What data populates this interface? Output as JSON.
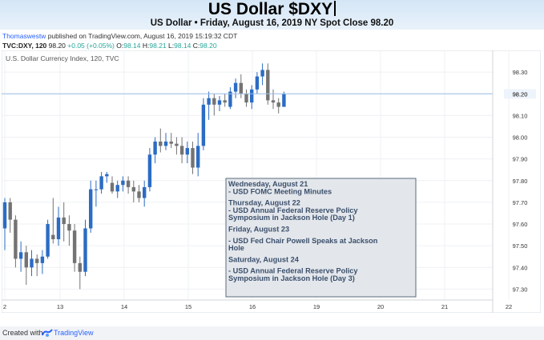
{
  "header": {
    "title": "US Dollar $DXY",
    "subtitle": "US Dollar • Friday, August 16, 2019 NY Spot Close 98.20"
  },
  "publish": {
    "author": "Thomaswestw",
    "text": " published on TradingView.com, August 16, 2019 15:19:32 CDT"
  },
  "ticker": {
    "symbol": "TVC:DXY, 120",
    "last": " 98.20 ",
    "change": "+0.05 (+0.05%)",
    "o_label": " O:",
    "o": "98.14",
    "h_label": " H:",
    "h": "98.21",
    "l_label": " L:",
    "l": "98.14",
    "c_label": " C:",
    "c": "98.20"
  },
  "footer": {
    "created_with": "Created with",
    "brand": "TradingView"
  },
  "colors": {
    "up": "#2b6cc4",
    "down": "#737373",
    "grid": "#eef0f3",
    "price_line": "#9bbde8",
    "header_bg": "#d4e6f6",
    "box_bg": "#e3e7ec"
  },
  "chart_data": {
    "type": "candlestick",
    "label": "U.S. Dollar Currency Index, 120, TVC",
    "last_price": 98.2,
    "ylim": [
      97.25,
      98.4
    ],
    "y_ticks": [
      "97.30",
      "97.40",
      "97.50",
      "97.60",
      "97.70",
      "97.80",
      "97.90",
      "98.00",
      "98.10",
      "98.20",
      "98.30"
    ],
    "x_ticks": [
      "2",
      "13",
      "14",
      "15",
      "16",
      "19",
      "20",
      "21",
      "22"
    ],
    "grid": true,
    "candles": [
      [
        97.58,
        97.72,
        97.48,
        97.7
      ],
      [
        97.7,
        97.72,
        97.56,
        97.62
      ],
      [
        97.62,
        97.64,
        97.4,
        97.44
      ],
      [
        97.44,
        97.52,
        97.38,
        97.47
      ],
      [
        97.47,
        97.5,
        97.32,
        97.4
      ],
      [
        97.4,
        97.48,
        97.36,
        97.44
      ],
      [
        97.44,
        97.46,
        97.36,
        97.42
      ],
      [
        97.42,
        97.48,
        97.37,
        97.45
      ],
      [
        97.45,
        97.62,
        97.44,
        97.6
      ],
      [
        97.55,
        97.72,
        97.51,
        97.53
      ],
      [
        97.53,
        97.68,
        97.5,
        97.63
      ],
      [
        97.63,
        97.7,
        97.52,
        97.6
      ],
      [
        97.6,
        97.64,
        97.5,
        97.57
      ],
      [
        97.57,
        97.6,
        97.38,
        97.42
      ],
      [
        97.42,
        97.45,
        97.3,
        97.38
      ],
      [
        97.38,
        97.62,
        97.36,
        97.58
      ],
      [
        97.58,
        97.8,
        97.56,
        97.76
      ],
      [
        97.76,
        97.8,
        97.68,
        97.76
      ],
      [
        97.76,
        97.84,
        97.74,
        97.82
      ],
      [
        97.82,
        97.84,
        97.79,
        97.83
      ],
      [
        97.79,
        97.82,
        97.74,
        97.75
      ],
      [
        97.75,
        97.8,
        97.72,
        97.78
      ],
      [
        97.78,
        97.82,
        97.75,
        97.8
      ],
      [
        97.8,
        97.82,
        97.74,
        97.77
      ],
      [
        97.77,
        97.8,
        97.7,
        97.75
      ],
      [
        97.75,
        97.78,
        97.7,
        97.72
      ],
      [
        97.72,
        97.8,
        97.68,
        97.77
      ],
      [
        97.77,
        97.95,
        97.75,
        97.92
      ],
      [
        97.92,
        98.0,
        97.88,
        97.98
      ],
      [
        97.98,
        98.04,
        97.93,
        97.96
      ],
      [
        97.96,
        98.02,
        97.94,
        97.98
      ],
      [
        97.98,
        98.02,
        97.95,
        97.97
      ],
      [
        97.97,
        98.0,
        97.92,
        97.96
      ],
      [
        97.96,
        98.0,
        97.88,
        97.92
      ],
      [
        97.92,
        97.98,
        97.88,
        97.95
      ],
      [
        97.95,
        97.98,
        97.83,
        97.86
      ],
      [
        97.86,
        98.02,
        97.82,
        97.96
      ],
      [
        97.96,
        98.18,
        97.94,
        98.15
      ],
      [
        98.15,
        98.21,
        98.08,
        98.18
      ],
      [
        98.18,
        98.2,
        98.1,
        98.15
      ],
      [
        98.15,
        98.19,
        98.12,
        98.17
      ],
      [
        98.17,
        98.2,
        98.14,
        98.16
      ],
      [
        98.14,
        98.23,
        98.13,
        98.21
      ],
      [
        98.21,
        98.27,
        98.18,
        98.25
      ],
      [
        98.25,
        98.29,
        98.18,
        98.2
      ],
      [
        98.2,
        98.22,
        98.14,
        98.16
      ],
      [
        98.16,
        98.24,
        98.13,
        98.22
      ],
      [
        98.22,
        98.3,
        98.2,
        98.28
      ],
      [
        98.28,
        98.34,
        98.24,
        98.31
      ],
      [
        98.31,
        98.34,
        98.15,
        98.17
      ],
      [
        98.17,
        98.22,
        98.13,
        98.16
      ],
      [
        98.16,
        98.18,
        98.11,
        98.14
      ],
      [
        98.14,
        98.21,
        98.14,
        98.2
      ]
    ],
    "events": [
      {
        "kind": "day",
        "text": "Wednesday, August 21"
      },
      {
        "kind": "item",
        "text": "- USD FOMC Meeting Minutes"
      },
      {
        "kind": "gap",
        "text": ""
      },
      {
        "kind": "day",
        "text": "Thursday, August 22"
      },
      {
        "kind": "item",
        "text": "- USD Annual Federal Reserve Policy"
      },
      {
        "kind": "item",
        "text": "Symposium in Jackson Hole (Day 1)"
      },
      {
        "kind": "gap",
        "text": ""
      },
      {
        "kind": "day",
        "text": "Friday, August 23"
      },
      {
        "kind": "gap",
        "text": ""
      },
      {
        "kind": "item",
        "text": "- USD Fed Chair Powell Speaks at Jackson"
      },
      {
        "kind": "item",
        "text": "Hole"
      },
      {
        "kind": "gap",
        "text": ""
      },
      {
        "kind": "day",
        "text": "Saturday, August 24"
      },
      {
        "kind": "gap",
        "text": ""
      },
      {
        "kind": "item",
        "text": "- USD Annual Federal Reserve Policy"
      },
      {
        "kind": "item",
        "text": "Symposium in Jackson Hole (Day 3)"
      }
    ]
  }
}
